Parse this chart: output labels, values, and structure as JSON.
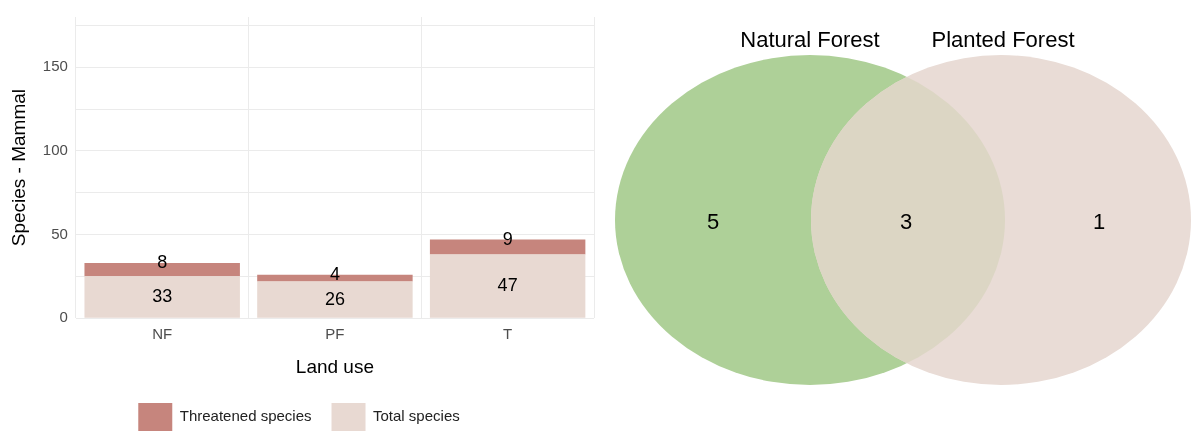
{
  "chart_data": [
    {
      "type": "bar",
      "xlabel": "Land use",
      "ylabel": "Species - Mammal",
      "categories": [
        "NF",
        "PF",
        "T"
      ],
      "series": [
        {
          "name": "Total species",
          "color": "#e8d9d2",
          "values": [
            25,
            22,
            38
          ]
        },
        {
          "name": "Threatened species",
          "color": "#c6857d",
          "values": [
            8,
            4,
            9
          ],
          "value_labels": [
            "8",
            "4",
            "9"
          ]
        }
      ],
      "stacked": true,
      "totals": [
        "33",
        "26",
        "47"
      ],
      "ylim": [
        0,
        180
      ],
      "yticks": [
        0,
        {
          "value": 25,
          "label": null
        },
        50,
        {
          "value": 75,
          "label": null
        },
        100,
        {
          "value": 125,
          "label": null
        },
        150,
        {
          "value": 175,
          "label": null
        }
      ],
      "grid": true,
      "legend": "bottom"
    },
    {
      "type": "other",
      "categories": [
        "Natural Forest",
        null,
        "Planted Forest"
      ],
      "values": [
        5,
        3,
        1
      ],
      "data_labels": true,
      "colors": [
        "#aed098",
        "#dcd6c4",
        "#e9dcd6"
      ]
    }
  ]
}
